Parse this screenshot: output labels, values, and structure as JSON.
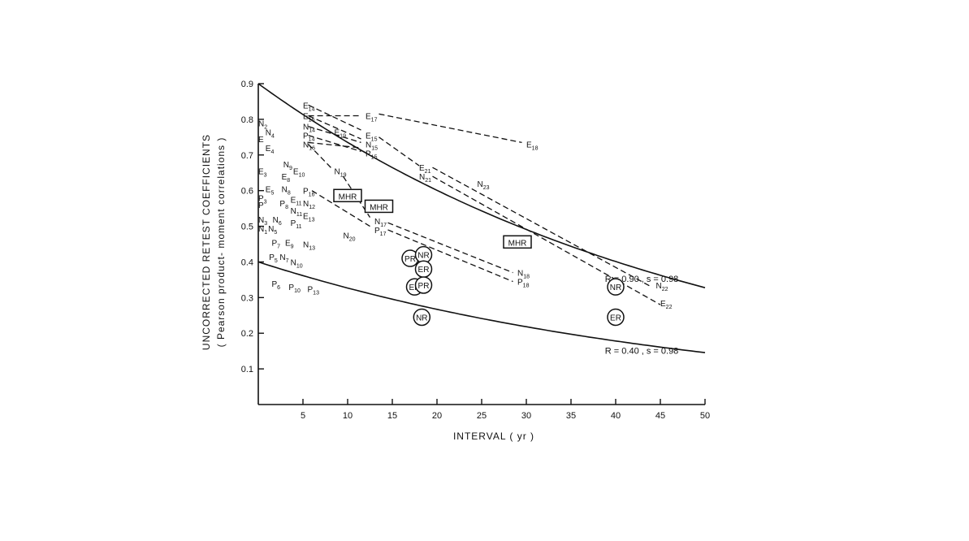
{
  "chart_data": {
    "type": "scatter",
    "xlabel": "INTERVAL ( yr )",
    "ylabel": "UNCORRECTED RETEST COEFFICIENTS",
    "ylabel_sub": "( Pearson product- moment correlations )",
    "xlim": [
      0,
      50
    ],
    "ylim": [
      0,
      0.9
    ],
    "x_ticks": [
      5,
      10,
      15,
      20,
      25,
      30,
      35,
      40,
      45,
      50
    ],
    "x_tick_labels": [
      "5",
      "10",
      "15",
      "20",
      "25",
      "30",
      "35",
      "40",
      "45",
      "50"
    ],
    "y_ticks": [
      0.1,
      0.2,
      0.3,
      0.4,
      0.5,
      0.6,
      0.7,
      0.8,
      0.9
    ],
    "y_tick_labels": [
      "0.1",
      "0.2",
      "0.3",
      "0.4",
      "0.5",
      "0.6",
      "0.7",
      "0.8",
      "0.9"
    ],
    "grid": false,
    "curves": [
      {
        "label": "R = 0.90 , s = 0.98",
        "R": 0.9,
        "s": 0.98
      },
      {
        "label": "R = 0.40 , s = 0.98",
        "R": 0.4,
        "s": 0.98
      }
    ],
    "points": [
      {
        "base": "E",
        "sub": "14",
        "x": 5,
        "y": 0.84,
        "style": "plain"
      },
      {
        "base": "E",
        "sub": "16",
        "x": 5,
        "y": 0.81,
        "style": "plain"
      },
      {
        "base": "E",
        "sub": "17",
        "x": 12,
        "y": 0.81,
        "style": "plain"
      },
      {
        "base": "E",
        "sub": "18",
        "x": 30,
        "y": 0.73,
        "style": "plain"
      },
      {
        "base": "N",
        "sub": "14",
        "x": 5,
        "y": 0.78,
        "style": "plain"
      },
      {
        "base": "P",
        "sub": "14",
        "x": 5,
        "y": 0.755,
        "style": "plain"
      },
      {
        "base": "N",
        "sub": "16",
        "x": 5,
        "y": 0.73,
        "style": "plain"
      },
      {
        "base": "E",
        "sub": "19",
        "x": 8.5,
        "y": 0.765,
        "style": "plain"
      },
      {
        "base": "E",
        "sub": "15",
        "x": 12,
        "y": 0.755,
        "style": "plain"
      },
      {
        "base": "N",
        "sub": "15",
        "x": 12,
        "y": 0.73,
        "style": "plain"
      },
      {
        "base": "P",
        "sub": "15",
        "x": 12,
        "y": 0.705,
        "style": "plain"
      },
      {
        "base": "N",
        "sub": "19",
        "x": 8.5,
        "y": 0.655,
        "style": "plain"
      },
      {
        "base": "E",
        "sub": "21",
        "x": 18,
        "y": 0.665,
        "style": "plain"
      },
      {
        "base": "N",
        "sub": "21",
        "x": 18,
        "y": 0.64,
        "style": "plain"
      },
      {
        "base": "N",
        "sub": "23",
        "x": 24.5,
        "y": 0.62,
        "style": "plain"
      },
      {
        "base": "N",
        "sub": "2",
        "x": 0,
        "y": 0.79,
        "style": "plain"
      },
      {
        "base": "N",
        "sub": "4",
        "x": 0.8,
        "y": 0.765,
        "style": "plain"
      },
      {
        "base": "E",
        "sub": "",
        "x": 0,
        "y": 0.745,
        "style": "plain"
      },
      {
        "base": "E",
        "sub": "4",
        "x": 0.8,
        "y": 0.72,
        "style": "plain"
      },
      {
        "base": "E",
        "sub": "3",
        "x": 0,
        "y": 0.655,
        "style": "plain"
      },
      {
        "base": "N",
        "sub": "9",
        "x": 2.8,
        "y": 0.675,
        "style": "plain"
      },
      {
        "base": "E",
        "sub": "10",
        "x": 3.9,
        "y": 0.655,
        "style": "plain"
      },
      {
        "base": "E",
        "sub": "8",
        "x": 2.6,
        "y": 0.64,
        "style": "plain"
      },
      {
        "base": "E",
        "sub": "5",
        "x": 0.8,
        "y": 0.605,
        "style": "plain"
      },
      {
        "base": "N",
        "sub": "8",
        "x": 2.6,
        "y": 0.605,
        "style": "plain"
      },
      {
        "base": "P",
        "sub": "16",
        "x": 5,
        "y": 0.6,
        "style": "plain"
      },
      {
        "base": "P",
        "sub": "3",
        "x": 0,
        "y": 0.58,
        "style": "plain"
      },
      {
        "base": "P",
        "sub": "",
        "x": 0,
        "y": 0.56,
        "style": "plain"
      },
      {
        "base": "P",
        "sub": "8",
        "x": 2.4,
        "y": 0.565,
        "style": "plain"
      },
      {
        "base": "E",
        "sub": "11",
        "x": 3.6,
        "y": 0.575,
        "style": "plain"
      },
      {
        "base": "N",
        "sub": "12",
        "x": 5,
        "y": 0.565,
        "style": "plain"
      },
      {
        "base": "N",
        "sub": "11",
        "x": 3.6,
        "y": 0.545,
        "style": "plain"
      },
      {
        "base": "E",
        "sub": "13",
        "x": 5,
        "y": 0.53,
        "style": "plain"
      },
      {
        "base": "N",
        "sub": "3",
        "x": 0,
        "y": 0.52,
        "style": "plain"
      },
      {
        "base": "N",
        "sub": "6",
        "x": 1.6,
        "y": 0.52,
        "style": "plain"
      },
      {
        "base": "P",
        "sub": "11",
        "x": 3.6,
        "y": 0.51,
        "style": "plain"
      },
      {
        "base": "N",
        "sub": "1",
        "x": 0,
        "y": 0.495,
        "style": "plain"
      },
      {
        "base": "N",
        "sub": "5",
        "x": 1.1,
        "y": 0.495,
        "style": "plain"
      },
      {
        "base": "N",
        "sub": "20",
        "x": 9.5,
        "y": 0.475,
        "style": "plain"
      },
      {
        "base": "N",
        "sub": "17",
        "x": 13,
        "y": 0.515,
        "style": "plain"
      },
      {
        "base": "P",
        "sub": "17",
        "x": 13,
        "y": 0.49,
        "style": "plain"
      },
      {
        "base": "P",
        "sub": "7",
        "x": 1.5,
        "y": 0.455,
        "style": "plain"
      },
      {
        "base": "E",
        "sub": "9",
        "x": 3,
        "y": 0.455,
        "style": "plain"
      },
      {
        "base": "N",
        "sub": "13",
        "x": 5,
        "y": 0.45,
        "style": "plain"
      },
      {
        "base": "P",
        "sub": "5",
        "x": 1.2,
        "y": 0.415,
        "style": "plain"
      },
      {
        "base": "N",
        "sub": "7",
        "x": 2.4,
        "y": 0.415,
        "style": "plain"
      },
      {
        "base": "N",
        "sub": "10",
        "x": 3.6,
        "y": 0.4,
        "style": "plain"
      },
      {
        "base": "P",
        "sub": "6",
        "x": 1.5,
        "y": 0.34,
        "style": "plain"
      },
      {
        "base": "P",
        "sub": "10",
        "x": 3.4,
        "y": 0.33,
        "style": "plain"
      },
      {
        "base": "P",
        "sub": "13",
        "x": 5.5,
        "y": 0.325,
        "style": "plain"
      },
      {
        "base": "N",
        "sub": "18",
        "x": 29,
        "y": 0.37,
        "style": "plain"
      },
      {
        "base": "P",
        "sub": "18",
        "x": 29,
        "y": 0.345,
        "style": "plain"
      },
      {
        "base": "N",
        "sub": "22",
        "x": 44.5,
        "y": 0.335,
        "style": "plain"
      },
      {
        "base": "E",
        "sub": "22",
        "x": 45,
        "y": 0.285,
        "style": "plain"
      },
      {
        "base": "MHR",
        "sub": "",
        "x": 10,
        "y": 0.585,
        "style": "box"
      },
      {
        "base": "MHR",
        "sub": "",
        "x": 13.5,
        "y": 0.555,
        "style": "box"
      },
      {
        "base": "MHR",
        "sub": "",
        "x": 29,
        "y": 0.455,
        "style": "box"
      },
      {
        "base": "PR",
        "sub": "",
        "x": 17,
        "y": 0.41,
        "style": "circle"
      },
      {
        "base": "NR",
        "sub": "",
        "x": 18.5,
        "y": 0.42,
        "style": "circle"
      },
      {
        "base": "ER",
        "sub": "",
        "x": 18.5,
        "y": 0.38,
        "style": "circle"
      },
      {
        "base": "ER",
        "sub": "",
        "x": 17.5,
        "y": 0.33,
        "style": "circle"
      },
      {
        "base": "PR",
        "sub": "",
        "x": 18.5,
        "y": 0.335,
        "style": "circle"
      },
      {
        "base": "NR",
        "sub": "",
        "x": 18.3,
        "y": 0.245,
        "style": "circle"
      },
      {
        "base": "NR",
        "sub": "",
        "x": 40,
        "y": 0.33,
        "style": "circle"
      },
      {
        "base": "ER",
        "sub": "",
        "x": 40,
        "y": 0.245,
        "style": "circle"
      }
    ],
    "dashed_links": [
      {
        "from": [
          5.6,
          0.84
        ],
        "to": [
          11.5,
          0.77
        ]
      },
      {
        "from": [
          5.6,
          0.81
        ],
        "to": [
          11.5,
          0.81
        ]
      },
      {
        "from": [
          13.5,
          0.815
        ],
        "to": [
          29.5,
          0.735
        ]
      },
      {
        "from": [
          5.6,
          0.81
        ],
        "to": [
          11.5,
          0.745
        ]
      },
      {
        "from": [
          5.6,
          0.78
        ],
        "to": [
          11.5,
          0.735
        ]
      },
      {
        "from": [
          5.6,
          0.755
        ],
        "to": [
          11.5,
          0.71
        ]
      },
      {
        "from": [
          5.6,
          0.73
        ],
        "to": [
          8.3,
          0.66
        ]
      },
      {
        "from": [
          5.6,
          0.735
        ],
        "to": [
          11.5,
          0.72
        ]
      },
      {
        "from": [
          13.5,
          0.75
        ],
        "to": [
          18,
          0.67
        ]
      },
      {
        "from": [
          19.5,
          0.665
        ],
        "to": [
          44,
          0.33
        ]
      },
      {
        "from": [
          19.5,
          0.64
        ],
        "to": [
          45,
          0.28
        ]
      },
      {
        "from": [
          9.5,
          0.64
        ],
        "to": [
          12.5,
          0.525
        ]
      },
      {
        "from": [
          6,
          0.6
        ],
        "to": [
          12.5,
          0.5
        ]
      },
      {
        "from": [
          14.5,
          0.51
        ],
        "to": [
          28.5,
          0.37
        ]
      },
      {
        "from": [
          14.5,
          0.49
        ],
        "to": [
          28.5,
          0.345
        ]
      }
    ]
  }
}
